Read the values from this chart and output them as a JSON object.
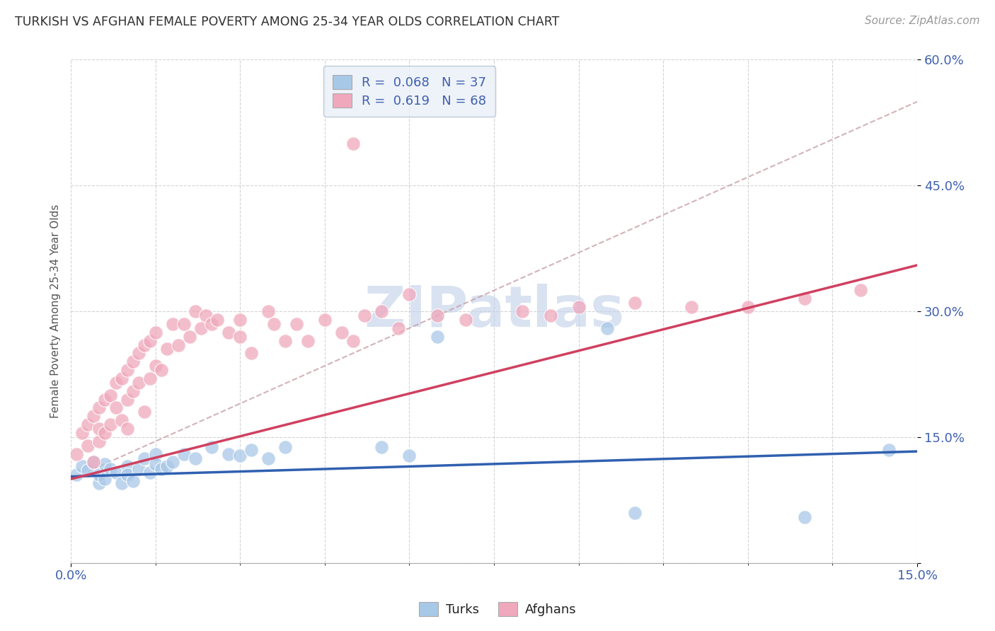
{
  "title": "TURKISH VS AFGHAN FEMALE POVERTY AMONG 25-34 YEAR OLDS CORRELATION CHART",
  "source": "Source: ZipAtlas.com",
  "ylabel": "Female Poverty Among 25-34 Year Olds",
  "xlim": [
    0.0,
    0.15
  ],
  "ylim": [
    0.0,
    0.6
  ],
  "ytick_positions": [
    0.15,
    0.3,
    0.45,
    0.6
  ],
  "ytick_labels": [
    "15.0%",
    "30.0%",
    "45.0%",
    "60.0%"
  ],
  "xtick_positions": [
    0.0,
    0.15
  ],
  "xtick_labels": [
    "0.0%",
    "15.0%"
  ],
  "turks_color": "#A8C8E8",
  "afghans_color": "#F0A8BC",
  "turks_line_color": "#3060B0",
  "afghans_line_color": "#D04060",
  "dashed_line_color": "#C8A0A8",
  "turks_R": 0.068,
  "turks_N": 37,
  "afghans_R": 0.619,
  "afghans_N": 68,
  "background_color": "#FFFFFF",
  "grid_color": "#C8C8C8",
  "title_color": "#303030",
  "tick_color": "#4060B0",
  "legend_bg": "#EAF0F8",
  "legend_edge": "#B0C0D0",
  "watermark_color": "#C0D0E8",
  "turks_x": [
    0.001,
    0.002,
    0.003,
    0.004,
    0.005,
    0.005,
    0.006,
    0.006,
    0.007,
    0.008,
    0.009,
    0.01,
    0.01,
    0.011,
    0.012,
    0.013,
    0.014,
    0.015,
    0.015,
    0.016,
    0.017,
    0.018,
    0.02,
    0.022,
    0.025,
    0.028,
    0.03,
    0.032,
    0.035,
    0.038,
    0.055,
    0.06,
    0.065,
    0.095,
    0.1,
    0.13,
    0.145
  ],
  "turks_y": [
    0.105,
    0.115,
    0.11,
    0.12,
    0.095,
    0.105,
    0.118,
    0.1,
    0.112,
    0.108,
    0.095,
    0.115,
    0.105,
    0.098,
    0.112,
    0.125,
    0.108,
    0.13,
    0.118,
    0.112,
    0.115,
    0.12,
    0.13,
    0.125,
    0.138,
    0.13,
    0.128,
    0.135,
    0.125,
    0.138,
    0.138,
    0.128,
    0.27,
    0.28,
    0.06,
    0.055,
    0.135
  ],
  "afghans_x": [
    0.001,
    0.002,
    0.003,
    0.003,
    0.004,
    0.004,
    0.005,
    0.005,
    0.005,
    0.006,
    0.006,
    0.007,
    0.007,
    0.008,
    0.008,
    0.009,
    0.009,
    0.01,
    0.01,
    0.01,
    0.011,
    0.011,
    0.012,
    0.012,
    0.013,
    0.013,
    0.014,
    0.014,
    0.015,
    0.015,
    0.016,
    0.017,
    0.018,
    0.019,
    0.02,
    0.021,
    0.022,
    0.023,
    0.024,
    0.025,
    0.026,
    0.028,
    0.03,
    0.03,
    0.032,
    0.035,
    0.036,
    0.038,
    0.04,
    0.042,
    0.045,
    0.048,
    0.05,
    0.052,
    0.055,
    0.058,
    0.06,
    0.065,
    0.07,
    0.08,
    0.085,
    0.09,
    0.1,
    0.11,
    0.12,
    0.13,
    0.14,
    0.05
  ],
  "afghans_y": [
    0.13,
    0.155,
    0.14,
    0.165,
    0.12,
    0.175,
    0.145,
    0.16,
    0.185,
    0.155,
    0.195,
    0.165,
    0.2,
    0.185,
    0.215,
    0.17,
    0.22,
    0.16,
    0.195,
    0.23,
    0.205,
    0.24,
    0.215,
    0.25,
    0.18,
    0.26,
    0.22,
    0.265,
    0.235,
    0.275,
    0.23,
    0.255,
    0.285,
    0.26,
    0.285,
    0.27,
    0.3,
    0.28,
    0.295,
    0.285,
    0.29,
    0.275,
    0.27,
    0.29,
    0.25,
    0.3,
    0.285,
    0.265,
    0.285,
    0.265,
    0.29,
    0.275,
    0.265,
    0.295,
    0.3,
    0.28,
    0.32,
    0.295,
    0.29,
    0.3,
    0.295,
    0.305,
    0.31,
    0.305,
    0.305,
    0.315,
    0.325,
    0.5
  ]
}
